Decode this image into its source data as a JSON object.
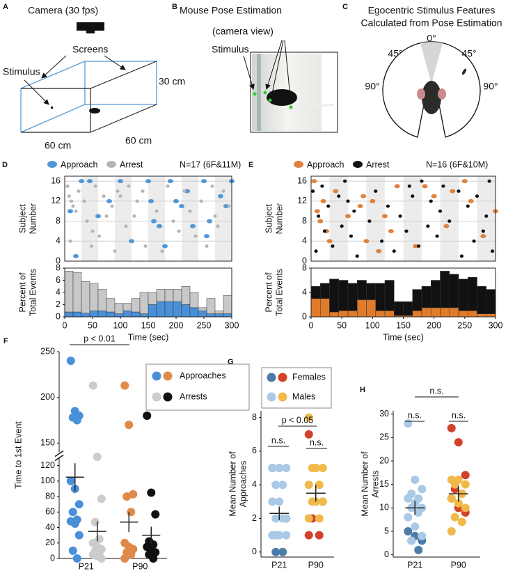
{
  "diagrams": {
    "a": {
      "letter": "A",
      "camera": "Camera (30 fps)",
      "screens": "Screens",
      "stimulus": "Stimulus",
      "height": "30 cm",
      "width": "60 cm",
      "depth": "60 cm"
    },
    "b": {
      "letter": "B",
      "title": "Mouse Pose Estimation",
      "subtitle": "(camera view)",
      "stimulus": "Stimulus"
    },
    "c": {
      "letter": "C",
      "title": [
        "Egocentric Stimulus Features",
        "Calculated from Pose Estimation"
      ],
      "angles": [
        "0°",
        "45°",
        "45°",
        "90°",
        "90°"
      ]
    }
  },
  "chart_data": [
    {
      "type": "scatter",
      "letter": "D",
      "ylabel": [
        "Subject",
        "Number"
      ],
      "annotation": "N=17 (6F&11M)",
      "xlim": [
        0,
        300
      ],
      "ylim": [
        0,
        17
      ],
      "yticks": [
        0,
        4,
        8,
        12,
        16
      ],
      "grid": true,
      "shaded_intervals": [
        [
          30,
          60
        ],
        [
          90,
          120
        ],
        [
          150,
          180
        ],
        [
          210,
          240
        ],
        [
          270,
          300
        ]
      ],
      "series": [
        {
          "name": "Approach",
          "color": "#4f97d8",
          "x": [
            30,
            45,
            60,
            100,
            150,
            155,
            160,
            170,
            190,
            200,
            210,
            230,
            250,
            255,
            260,
            280,
            300,
            290,
            20,
            180,
            80,
            10,
            220,
            120
          ],
          "values": [
            16,
            16,
            9,
            16,
            16,
            12,
            8,
            7,
            16,
            12,
            11,
            7,
            16,
            5,
            8,
            13,
            16,
            11,
            1,
            3,
            12,
            10,
            14,
            4
          ]
        },
        {
          "name": "Arrest",
          "color": "#b5b5b5",
          "x": [
            5,
            8,
            12,
            15,
            20,
            25,
            35,
            40,
            48,
            55,
            62,
            70,
            75,
            85,
            90,
            95,
            110,
            115,
            125,
            130,
            140,
            145,
            165,
            175,
            185,
            195,
            205,
            215,
            225,
            235,
            245,
            255,
            265,
            270,
            275,
            285,
            295,
            10,
            50,
            100
          ],
          "values": [
            15,
            13,
            12,
            11,
            10,
            14,
            12,
            8,
            3,
            15,
            5,
            13,
            9,
            11,
            2,
            14,
            7,
            15,
            9,
            12,
            14,
            3,
            10,
            2,
            15,
            8,
            6,
            14,
            10,
            5,
            12,
            3,
            15,
            9,
            7,
            14,
            11,
            4,
            6,
            13
          ]
        }
      ]
    },
    {
      "type": "histogram",
      "ylabel": [
        "Percent of",
        "Total Events"
      ],
      "xlabel": "Time (sec)",
      "bins": [
        0,
        15,
        30,
        45,
        60,
        75,
        90,
        105,
        120,
        135,
        150,
        165,
        180,
        195,
        210,
        225,
        240,
        255,
        270,
        285,
        300
      ],
      "xlim": [
        0,
        300
      ],
      "xticks": [
        0,
        50,
        100,
        150,
        200,
        250,
        300
      ],
      "ylim": [
        0,
        8
      ],
      "yticks": [
        0,
        2,
        4,
        6,
        8
      ],
      "series": [
        {
          "name": "Approach",
          "color": "#4a90d9",
          "values": [
            0.8,
            0.8,
            0.6,
            1,
            1,
            0.8,
            0.5,
            1,
            0.8,
            0.5,
            2,
            2.5,
            2.5,
            2.5,
            2,
            1.5,
            1,
            0.5,
            0.5,
            0.5
          ]
        },
        {
          "name": "Arrest",
          "color": "#c8c8c8",
          "values": [
            6.7,
            6.5,
            5.2,
            4.5,
            3.5,
            2.2,
            1.7,
            1.2,
            2.2,
            3.5,
            2,
            2,
            2,
            2,
            3,
            2.5,
            0.5,
            2.5,
            0.5,
            3
          ]
        }
      ]
    },
    {
      "type": "scatter",
      "letter": "E",
      "ylabel": [
        "Subject",
        "Number"
      ],
      "annotation": "N=16 (6F&10M)",
      "xlim": [
        0,
        300
      ],
      "ylim": [
        0,
        17
      ],
      "yticks": [
        0,
        4,
        8,
        12,
        16
      ],
      "grid": true,
      "shaded_intervals": [
        [
          30,
          60
        ],
        [
          90,
          120
        ],
        [
          150,
          180
        ],
        [
          210,
          240
        ],
        [
          270,
          300
        ]
      ],
      "series": [
        {
          "name": "Approach",
          "color": "#e0823c",
          "x": [
            5,
            10,
            20,
            25,
            30,
            40,
            60,
            80,
            85,
            90,
            100,
            110,
            130,
            140,
            170,
            200,
            220,
            230,
            250,
            260,
            280,
            300,
            15,
            120,
            185
          ],
          "values": [
            16,
            10,
            12,
            6,
            4,
            14,
            9,
            11,
            13,
            4,
            12,
            2,
            6,
            15,
            3,
            13,
            7,
            14,
            16,
            12,
            5,
            10,
            8,
            9,
            15
          ]
        },
        {
          "name": "Arrest",
          "color": "#111111",
          "x": [
            3,
            8,
            12,
            18,
            22,
            28,
            35,
            45,
            50,
            55,
            65,
            70,
            75,
            95,
            105,
            115,
            125,
            135,
            145,
            155,
            165,
            175,
            180,
            190,
            195,
            205,
            210,
            215,
            225,
            240,
            245,
            255,
            265,
            270,
            280,
            285,
            290,
            295,
            60,
            160
          ],
          "values": [
            14,
            2,
            9,
            15,
            6,
            11,
            3,
            13,
            7,
            16,
            5,
            10,
            1,
            8,
            14,
            4,
            11,
            2,
            9,
            6,
            13,
            3,
            16,
            7,
            12,
            5,
            10,
            15,
            8,
            14,
            1,
            11,
            4,
            13,
            6,
            9,
            16,
            2,
            12,
            15
          ]
        }
      ]
    },
    {
      "type": "histogram",
      "ylabel": [
        "Percent of",
        "Total Events"
      ],
      "xlabel": "Time (sec)",
      "bins": [
        0,
        15,
        30,
        45,
        60,
        75,
        90,
        105,
        120,
        135,
        150,
        165,
        180,
        195,
        210,
        225,
        240,
        255,
        270,
        285,
        300
      ],
      "xlim": [
        0,
        300
      ],
      "xticks": [
        0,
        50,
        100,
        150,
        200,
        250,
        300
      ],
      "ylim": [
        0,
        8
      ],
      "yticks": [
        0,
        4,
        8
      ],
      "series": [
        {
          "name": "Approach",
          "color": "#e07b2a",
          "values": [
            3,
            3,
            0.8,
            1,
            1,
            2.8,
            2.8,
            1,
            1,
            0.2,
            0.2,
            1,
            1.5,
            1.5,
            1.5,
            1.5,
            1,
            1,
            0.5,
            0.5
          ]
        },
        {
          "name": "Arrest",
          "color": "#111111",
          "values": [
            2,
            2.5,
            5.4,
            5,
            4.5,
            3.2,
            2.7,
            4.5,
            5,
            2.3,
            2.3,
            3.5,
            3.5,
            4.5,
            6,
            5.5,
            5.2,
            5.5,
            4.5,
            4
          ]
        }
      ]
    },
    {
      "type": "dot",
      "letter": "F",
      "ylabel": "Time to 1st Event",
      "categories": [
        "P21",
        "P90"
      ],
      "ylim": [
        0,
        250
      ],
      "ybreak": [
        130,
        140
      ],
      "yticks": [
        0,
        20,
        40,
        60,
        80,
        100,
        120,
        150,
        200,
        250
      ],
      "annotations": [
        "p < 0.01"
      ],
      "series": [
        {
          "name": "Approaches",
          "colors": [
            "#4a90d9",
            "#e08a4a"
          ],
          "values": [
            [
              240,
              185,
              180,
              178,
              175,
              100,
              90,
              70,
              60,
              50,
              48,
              45,
              30,
              10,
              0
            ],
            [
              213,
              170,
              83,
              80,
              60,
              20,
              15,
              12,
              8,
              5,
              0
            ]
          ],
          "means": [
            105,
            47
          ],
          "errors": [
            18,
            13
          ]
        },
        {
          "name": "Arrests",
          "colors": [
            "#cccccc",
            "#111111"
          ],
          "values": [
            [
              213,
              135,
              77,
              47,
              25,
              20,
              15,
              12,
              10,
              8,
              5,
              3,
              0
            ],
            [
              180,
              85,
              57,
              22,
              18,
              15,
              10,
              8,
              5,
              0
            ]
          ],
          "means": [
            35,
            30
          ],
          "errors": [
            13,
            11
          ]
        }
      ]
    },
    {
      "type": "dot",
      "letter": "G",
      "ylabel": [
        "Mean Number of",
        "Approaches"
      ],
      "categories": [
        "P21",
        "P90"
      ],
      "ylim": [
        -0.3,
        8.4
      ],
      "yticks": [
        0,
        2,
        4,
        6,
        8
      ],
      "annotations": [
        "n.s.",
        "p < 0.05",
        "n.s."
      ],
      "means": [
        2.3,
        3.5
      ],
      "errors": [
        0.4,
        0.5
      ],
      "series": [
        {
          "name": "Females",
          "colors": [
            "#4d7ca8",
            "#d1422b"
          ],
          "values": [
            [
              5,
              5,
              2,
              0,
              0
            ],
            [
              7,
              5,
              3,
              2,
              1,
              1
            ]
          ]
        },
        {
          "name": "Males",
          "colors": [
            "#a9c9e6",
            "#f0b94a"
          ],
          "values": [
            [
              5,
              5,
              5,
              4,
              4,
              3,
              3,
              2,
              2,
              2,
              1,
              1,
              1,
              1
            ],
            [
              8,
              5,
              5,
              5,
              4,
              4,
              3,
              3,
              3,
              2,
              2
            ]
          ]
        }
      ]
    },
    {
      "type": "dot",
      "letter": "H",
      "ylabel": [
        "Mean Number of",
        "Arrests"
      ],
      "categories": [
        "P21",
        "P90"
      ],
      "ylim": [
        -0.5,
        30.7
      ],
      "yticks": [
        0,
        5,
        10,
        15,
        20,
        25,
        30
      ],
      "annotations": [
        "n.s.",
        "n.s.",
        "n.s."
      ],
      "means": [
        10,
        13
      ],
      "errors": [
        1.5,
        1.7
      ],
      "series": [
        {
          "name": "Females",
          "colors": [
            "#4d7ca8",
            "#d1422b"
          ],
          "values": [
            [
              5,
              4,
              3,
              3,
              1
            ],
            [
              27,
              24,
              17,
              14,
              13,
              12,
              10,
              9
            ]
          ]
        },
        {
          "name": "Males",
          "colors": [
            "#a9c9e6",
            "#f0b94a"
          ],
          "values": [
            [
              28,
              16,
              14,
              13,
              12,
              12,
              11,
              10,
              10,
              9,
              8,
              6,
              4,
              3
            ],
            [
              16,
              16,
              15,
              15,
              13,
              12,
              11,
              10,
              8,
              7,
              5
            ]
          ]
        }
      ]
    }
  ]
}
